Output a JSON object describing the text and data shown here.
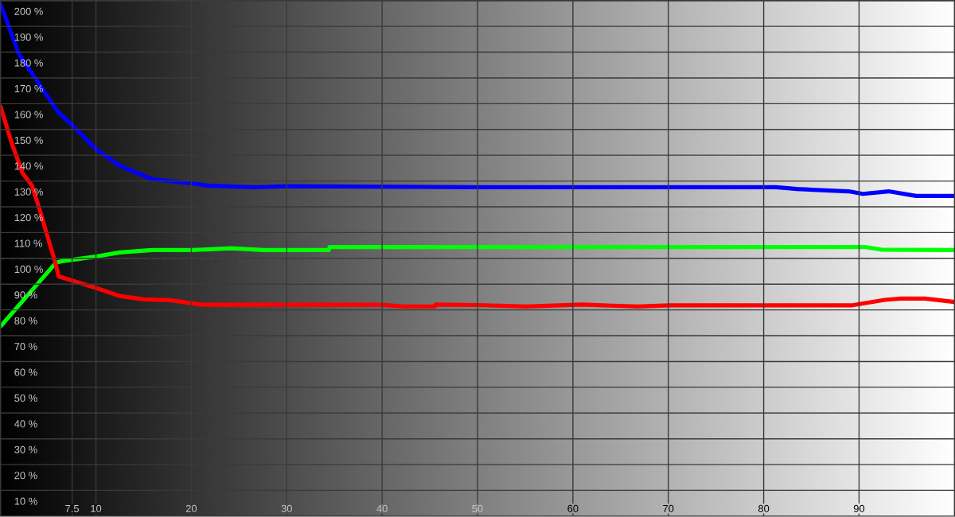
{
  "chart_data": {
    "type": "line",
    "xlim": [
      0,
      100
    ],
    "ylim": [
      0,
      200
    ],
    "xticks": [
      7.5,
      10,
      20,
      30,
      40,
      50,
      60,
      70,
      80,
      90
    ],
    "yticks": [
      {
        "value": 10,
        "label": "10 %"
      },
      {
        "value": 20,
        "label": "20 %"
      },
      {
        "value": 30,
        "label": "30 %"
      },
      {
        "value": 40,
        "label": "40 %"
      },
      {
        "value": 50,
        "label": "50 %"
      },
      {
        "value": 60,
        "label": "60 %"
      },
      {
        "value": 70,
        "label": "70 %"
      },
      {
        "value": 80,
        "label": "80 %"
      },
      {
        "value": 90,
        "label": "90 %"
      },
      {
        "value": 100,
        "label": "100 %"
      },
      {
        "value": 110,
        "label": "110 %"
      },
      {
        "value": 120,
        "label": "120 %"
      },
      {
        "value": 130,
        "label": "130 %"
      },
      {
        "value": 140,
        "label": "140 %"
      },
      {
        "value": 150,
        "label": "150 %"
      },
      {
        "value": 160,
        "label": "160 %"
      },
      {
        "value": 170,
        "label": "170 %"
      },
      {
        "value": 180,
        "label": "180 %"
      },
      {
        "value": 190,
        "label": "190 %"
      },
      {
        "value": 200,
        "label": "200 %"
      }
    ],
    "grid": true,
    "marker": "none",
    "line_style": "solid",
    "ref_lines": [
      {
        "axis": "y",
        "value": 100,
        "color": "#a0a0a0",
        "line_style": "dashed"
      }
    ],
    "series": [
      {
        "color": "#0000ff",
        "x": [
          0,
          1.9,
          6.0,
          7.5,
          10,
          12.5,
          15.9,
          20,
          21.7,
          26.7,
          30,
          50,
          81.3,
          83.5,
          88.9,
          90.4,
          93.1,
          96.0,
          100
        ],
        "values": [
          198.6,
          179.4,
          156.9,
          151.7,
          142.4,
          135.9,
          130.7,
          129.1,
          128.2,
          127.6,
          128.0,
          127.6,
          127.6,
          126.9,
          126.0,
          125.0,
          126.0,
          124.2,
          124.2
        ]
      },
      {
        "color": "#00ff00",
        "x": [
          0,
          5.8,
          6.4,
          10,
          12.5,
          15.9,
          20,
          24.2,
          27.6,
          34.4,
          34.5,
          90.6,
          92.3,
          100
        ],
        "values": [
          73.6,
          98.3,
          98.9,
          100.7,
          102.3,
          103.2,
          103.2,
          103.9,
          103.2,
          103.2,
          104.4,
          104.4,
          103.4,
          103.2
        ]
      },
      {
        "color": "#ff0000",
        "x": [
          0,
          1.1,
          2.3,
          3.3,
          4.2,
          5.0,
          5.7,
          6.1,
          10,
          12.5,
          15,
          17.8,
          21.1,
          40,
          42.2,
          45.5,
          45.6,
          50,
          55.1,
          60.9,
          66.8,
          70.1,
          89.3,
          92.7,
          94.4,
          96.9,
          100
        ],
        "values": [
          158.9,
          145.5,
          133.1,
          128.2,
          117.7,
          107.5,
          98.9,
          93.0,
          88.5,
          85.4,
          84.1,
          83.8,
          82.0,
          82.0,
          81.3,
          81.3,
          82.1,
          81.9,
          81.3,
          82.1,
          81.3,
          81.8,
          81.8,
          83.9,
          84.4,
          84.4,
          83.1
        ]
      }
    ]
  }
}
